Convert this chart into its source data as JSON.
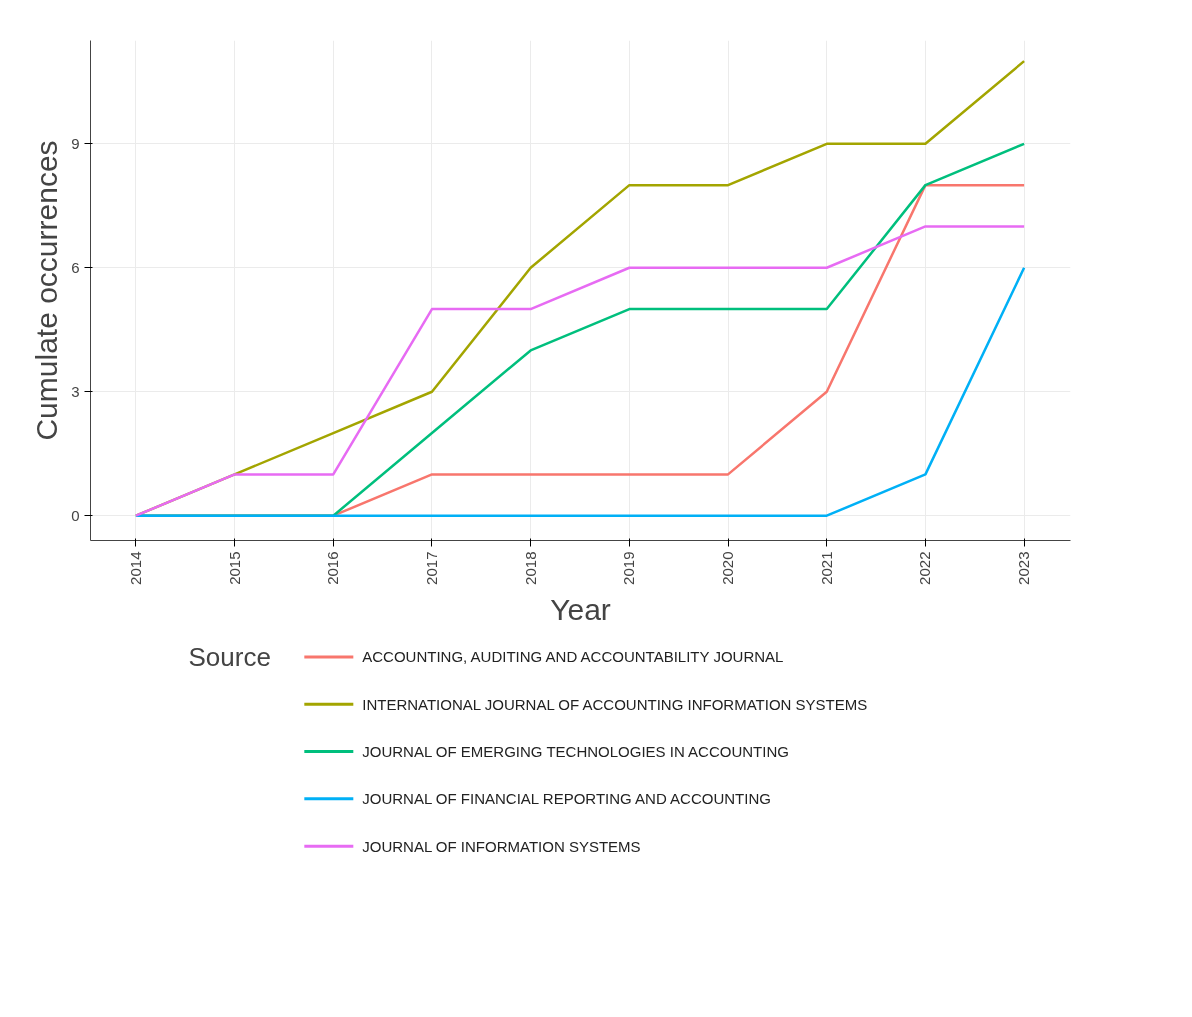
{
  "chart_data": {
    "type": "line",
    "xlabel": "Year",
    "ylabel": "Cumulate occurrences",
    "legend_title": "Source",
    "x": [
      2014,
      2015,
      2016,
      2017,
      2018,
      2019,
      2020,
      2021,
      2022,
      2023
    ],
    "series": [
      {
        "name": "ACCOUNTING, AUDITING AND ACCOUNTABILITY JOURNAL",
        "color": "#f8766d",
        "values": [
          0,
          0,
          0,
          1,
          1,
          1,
          1,
          3,
          8,
          8
        ]
      },
      {
        "name": "INTERNATIONAL JOURNAL OF ACCOUNTING INFORMATION SYSTEMS",
        "color": "#a3a500",
        "values": [
          0,
          1,
          2,
          3,
          6,
          8,
          8,
          9,
          9,
          11
        ]
      },
      {
        "name": "JOURNAL OF EMERGING TECHNOLOGIES IN ACCOUNTING",
        "color": "#00bf7d",
        "values": [
          0,
          0,
          0,
          2,
          4,
          5,
          5,
          5,
          8,
          9
        ]
      },
      {
        "name": "JOURNAL OF FINANCIAL REPORTING AND ACCOUNTING",
        "color": "#00b0f6",
        "values": [
          0,
          0,
          0,
          0,
          0,
          0,
          0,
          0,
          1,
          6
        ]
      },
      {
        "name": "JOURNAL OF INFORMATION SYSTEMS",
        "color": "#e76bf3",
        "values": [
          0,
          1,
          1,
          5,
          5,
          6,
          6,
          6,
          7,
          7
        ]
      }
    ],
    "xlim": [
      2013.54,
      2023.47
    ],
    "ylim": [
      -0.6,
      11.5
    ],
    "xticks": [
      2014,
      2015,
      2016,
      2017,
      2018,
      2019,
      2020,
      2021,
      2022,
      2023
    ],
    "yticks": [
      0,
      3,
      6,
      9
    ],
    "grid": true,
    "legend": "bottom",
    "line_style": "solid",
    "marker": "none"
  }
}
